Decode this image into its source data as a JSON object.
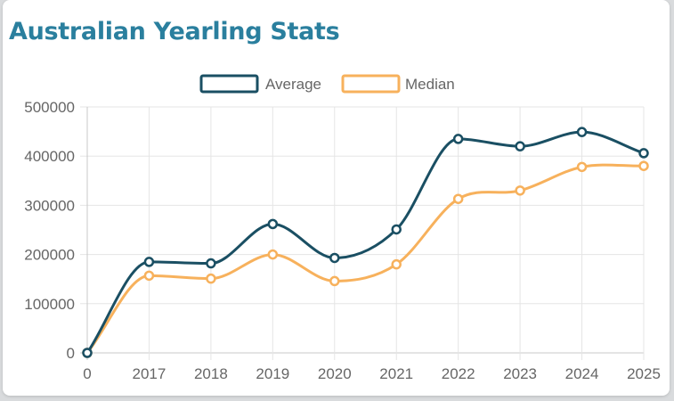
{
  "title": "Australian Yearling Stats",
  "colors": {
    "title": "#2a7f9e",
    "average": "#1a4f63",
    "median": "#f7b15c",
    "grid": "#e5e5e5",
    "axis_text": "#666666"
  },
  "chart_data": {
    "type": "line",
    "title": "Australian Yearling Stats",
    "x": [
      "0",
      "2017",
      "2018",
      "2019",
      "2020",
      "2021",
      "2022",
      "2023",
      "2024",
      "2025"
    ],
    "series": [
      {
        "name": "Average",
        "color": "#1a4f63",
        "values": [
          0,
          185000,
          182000,
          262000,
          193000,
          251000,
          435000,
          420000,
          449000,
          406000
        ]
      },
      {
        "name": "Median",
        "color": "#f7b15c",
        "values": [
          0,
          157000,
          151000,
          200000,
          146000,
          180000,
          313000,
          330000,
          378000,
          380000
        ]
      }
    ],
    "yticks": [
      "0",
      "100000",
      "200000",
      "300000",
      "400000",
      "500000"
    ],
    "ylim": [
      0,
      500000
    ],
    "xlabel": "",
    "ylabel": "",
    "grid": true,
    "legend": "top-center",
    "smooth": true
  }
}
